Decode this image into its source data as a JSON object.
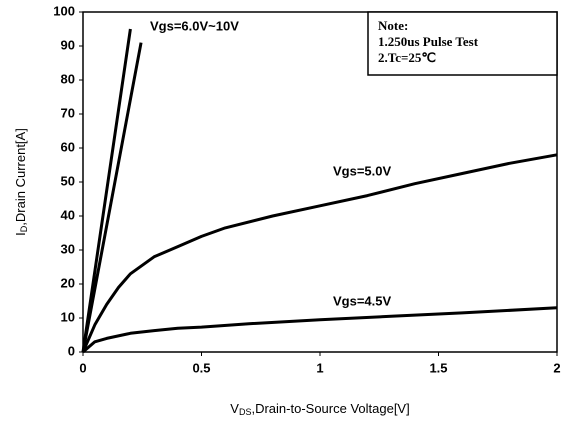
{
  "chart_data": {
    "type": "line",
    "xlabel": {
      "main": "V",
      "sub": "DS",
      "rest": ",Drain-to-Source Voltage[V]"
    },
    "ylabel": {
      "main": "I",
      "sub": "D",
      "rest": ",Drain Current[A]"
    },
    "note": [
      "Note:",
      "1.250us Pulse Test",
      "2.Tc=25℃"
    ],
    "xlim": [
      0,
      2
    ],
    "ylim": [
      0,
      100
    ],
    "xticks": [
      0,
      0.5,
      1,
      1.5,
      2
    ],
    "yticks": [
      0,
      10,
      20,
      30,
      40,
      50,
      60,
      70,
      80,
      90,
      100
    ],
    "grid": false,
    "series": [
      {
        "name": "Vgs=6.0V~10V",
        "color": "#000000",
        "x": [
          0,
          0.2,
          0.2,
          0,
          0.245
        ],
        "values": [
          0,
          95,
          null,
          0,
          91
        ]
      },
      {
        "name": "Vgs=5.0V",
        "color": "#000000",
        "x": [
          0,
          0.05,
          0.1,
          0.15,
          0.2,
          0.3,
          0.4,
          0.5,
          0.6,
          0.8,
          1.0,
          1.2,
          1.4,
          1.6,
          1.8,
          2.0
        ],
        "values": [
          0,
          8,
          14,
          19,
          23,
          28,
          31,
          34,
          36.5,
          40,
          43,
          46,
          49.5,
          52.5,
          55.5,
          58
        ]
      },
      {
        "name": "Vgs=4.5V",
        "color": "#000000",
        "x": [
          0,
          0.05,
          0.1,
          0.2,
          0.3,
          0.4,
          0.5,
          0.7,
          1.0,
          1.3,
          1.6,
          2.0
        ],
        "values": [
          0,
          3,
          4,
          5.5,
          6.3,
          7,
          7.3,
          8.3,
          9.5,
          10.5,
          11.5,
          13
        ]
      }
    ]
  }
}
